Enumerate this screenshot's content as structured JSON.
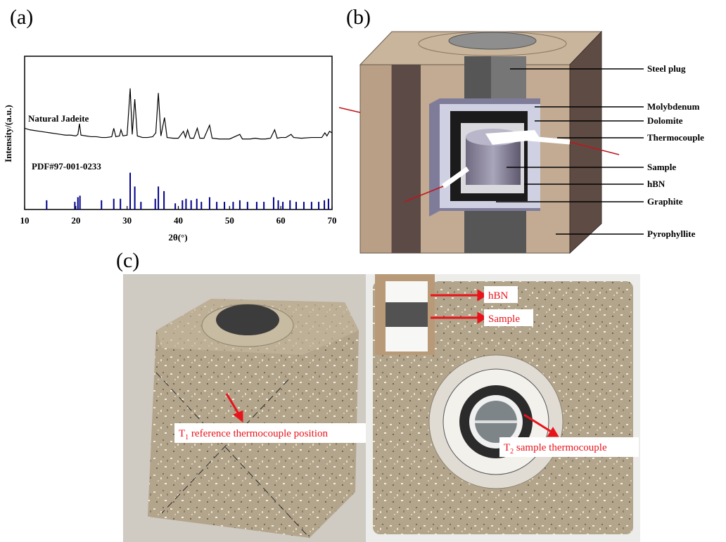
{
  "panel_labels": [
    "(a)",
    "(b)",
    "(c)"
  ],
  "chart_data": {
    "type": "line",
    "x_label": "2θ(°)",
    "y_label": "Intensity/(a.u.)",
    "xlim": [
      10,
      70
    ],
    "xticks": [
      10,
      20,
      30,
      40,
      50,
      60,
      70
    ],
    "ylim": [
      0,
      100
    ],
    "series": [
      {
        "name": "Natural Jadeite",
        "type": "line",
        "color": "#000000",
        "x": [
          10,
          11,
          12,
          13,
          14,
          15,
          16,
          17,
          18,
          19,
          20,
          20.4,
          20.7,
          21,
          22,
          23,
          24,
          25,
          26,
          27,
          27.4,
          27.8,
          28.5,
          28.8,
          29.2,
          30,
          30.6,
          31,
          31.5,
          32,
          33,
          34,
          35,
          35.6,
          36.1,
          36.6,
          37.3,
          37.8,
          39,
          40,
          41,
          41.4,
          41.8,
          42.3,
          43,
          43.7,
          44.2,
          45,
          46.1,
          46.6,
          48,
          50,
          52,
          52.5,
          54,
          55,
          56,
          57,
          58,
          58.8,
          59.3,
          60,
          61,
          62,
          62.5,
          64,
          66,
          68,
          68.6,
          69,
          69.5,
          70
        ],
        "values": [
          53,
          52,
          51.5,
          51,
          50.5,
          50,
          49.5,
          49,
          48.5,
          48.5,
          48,
          49,
          56,
          48.5,
          48,
          47.5,
          47.5,
          47,
          47,
          47.5,
          53,
          47.5,
          48,
          52,
          48,
          48.5,
          79,
          49,
          72,
          48,
          47,
          47,
          47.5,
          50,
          76,
          48,
          60,
          47,
          46.5,
          46.5,
          51,
          47,
          52,
          46.5,
          46.5,
          53,
          46.5,
          46.5,
          55,
          46.5,
          46,
          46,
          49,
          46,
          46,
          46.5,
          46,
          46,
          46.5,
          52,
          46.5,
          47,
          47,
          49,
          47,
          46.5,
          47,
          47,
          50,
          48,
          51,
          50
        ]
      },
      {
        "name": "PDF#97-001-0233",
        "type": "bar",
        "color": "#00008b",
        "x": [
          14.3,
          19.8,
          20.4,
          20.8,
          25,
          27.4,
          28.7,
          30.6,
          31.5,
          32.7,
          35.5,
          36.1,
          37.2,
          39.4,
          40.8,
          41.5,
          42.5,
          43.6,
          44.5,
          46.1,
          47.5,
          49,
          50.7,
          52,
          53.5,
          55.3,
          56.7,
          58.6,
          59.5,
          60.4,
          61.8,
          63,
          64.5,
          66,
          67.4,
          68.5,
          69.3
        ],
        "values": [
          6,
          5,
          8,
          9,
          6,
          7,
          7,
          24,
          15,
          5,
          7,
          15,
          12,
          4,
          6,
          7,
          6,
          7,
          5,
          8,
          5,
          5,
          5,
          6,
          5,
          5,
          5,
          8,
          6,
          5,
          6,
          5,
          5,
          5,
          5,
          6,
          7
        ]
      }
    ]
  },
  "diagram": {
    "labels": [
      "Steel plug",
      "Molybdenum",
      "Dolomite",
      "Thermocouple",
      "Sample",
      "hBN",
      "Graphite",
      "Pyrophyllite"
    ]
  },
  "photo": {
    "inset_labels": [
      "hBN",
      "Sample"
    ],
    "annotations": [
      {
        "symbol": "T",
        "subscript": "1",
        "text": " reference thermocouple position"
      },
      {
        "symbol": "T",
        "subscript": "2",
        "text": " sample thermocouple"
      }
    ]
  }
}
